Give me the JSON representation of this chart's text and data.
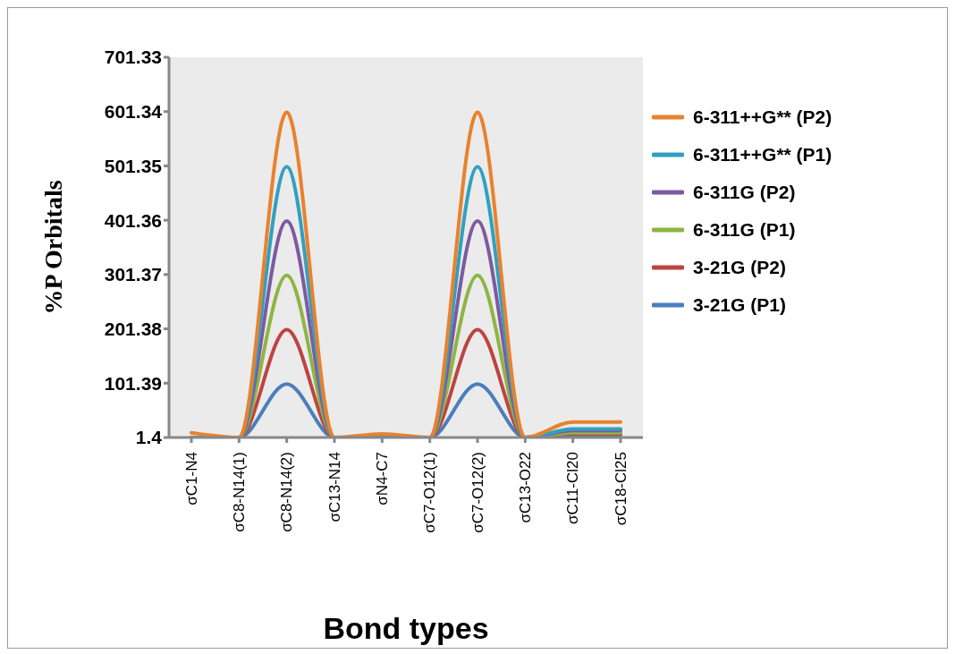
{
  "chart_data": {
    "type": "line",
    "xlabel": "Bond types",
    "ylabel": "%P Orbitals",
    "categories": [
      "σC1-N4",
      "σC8-N14(1)",
      "σC8-N14(2)",
      "σC13-N14",
      "σN4-C7",
      "σC7-O12(1)",
      "σC7-O12(2)",
      "σC13-O22",
      "σC11-Cl20",
      "σC18-Cl25"
    ],
    "series": [
      {
        "name": "6-311++G** (P2)",
        "color": "#e8822e",
        "values": [
          10,
          1.4,
          600,
          1.4,
          8,
          1.4,
          600,
          1.4,
          30,
          30
        ]
      },
      {
        "name": "6-311++G** (P1)",
        "color": "#31a0c0",
        "values": [
          1.4,
          1.4,
          500,
          1.4,
          1.4,
          1.4,
          500,
          1.4,
          17,
          17
        ]
      },
      {
        "name": "6-311G (P2)",
        "color": "#7d5aa0",
        "values": [
          1.4,
          1.4,
          400,
          1.4,
          1.4,
          1.4,
          400,
          1.4,
          14,
          14
        ]
      },
      {
        "name": "6-311G (P1)",
        "color": "#8db543",
        "values": [
          1.4,
          1.4,
          300,
          1.4,
          1.4,
          1.4,
          300,
          1.4,
          10,
          10
        ]
      },
      {
        "name": "3-21G (P2)",
        "color": "#bd4441",
        "values": [
          1.4,
          1.4,
          200,
          1.4,
          1.4,
          1.4,
          200,
          1.4,
          8,
          8
        ]
      },
      {
        "name": "3-21G (P1)",
        "color": "#4a7ebb",
        "values": [
          1.4,
          1.4,
          100,
          1.4,
          1.4,
          1.4,
          100,
          1.4,
          5,
          5
        ]
      }
    ],
    "ylim": [
      1.4,
      701.33
    ],
    "yticks": [
      1.4,
      101.39,
      201.38,
      301.37,
      401.36,
      501.35,
      601.34,
      701.33
    ],
    "legend": "right",
    "marker": "none",
    "line_style": "solid"
  }
}
